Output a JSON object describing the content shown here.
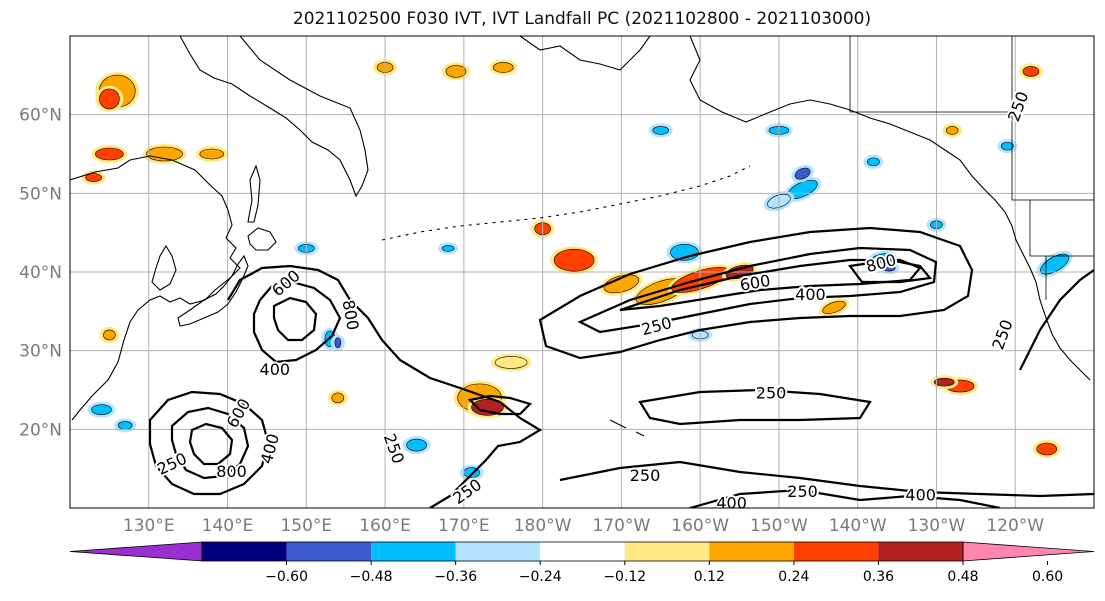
{
  "title": "2021102500 F030 IVT, IVT Landfall PC (2021102800 - 2021103000)",
  "map": {
    "lat_labels": [
      "60°N",
      "50°N",
      "40°N",
      "30°N",
      "20°N"
    ],
    "lon_labels": [
      "130°E",
      "140°E",
      "150°E",
      "160°E",
      "170°E",
      "180°W",
      "170°W",
      "160°W",
      "150°W",
      "140°W",
      "130°W",
      "120°W"
    ],
    "colors": {
      "coast": "#000000",
      "grid": "#b0b0b0",
      "contour": "#000000"
    }
  },
  "contours": {
    "levels": [
      250,
      400,
      600,
      800
    ],
    "labels": [
      {
        "text": "600",
        "lon": 147.5,
        "lat": 38.5,
        "rot": -40
      },
      {
        "text": "800",
        "lon": 155.5,
        "lat": 34.5,
        "rot": 80
      },
      {
        "text": "400",
        "lon": 146.0,
        "lat": 27.5,
        "rot": 0
      },
      {
        "text": "600",
        "lon": 141.5,
        "lat": 22.0,
        "rot": -60
      },
      {
        "text": "800",
        "lon": 140.5,
        "lat": 14.5,
        "rot": 0
      },
      {
        "text": "400",
        "lon": 145.5,
        "lat": 17.5,
        "rot": -75
      },
      {
        "text": "250",
        "lon": 133.0,
        "lat": 15.5,
        "rot": -25
      },
      {
        "text": "250",
        "lon": 161.0,
        "lat": 17.5,
        "rot": 70
      },
      {
        "text": "250",
        "lon": 170.5,
        "lat": 12.0,
        "rot": -35
      },
      {
        "text": "250",
        "lon": -165.5,
        "lat": 33.0,
        "rot": -15
      },
      {
        "text": "600",
        "lon": -153.0,
        "lat": 38.5,
        "rot": -10
      },
      {
        "text": "800",
        "lon": -137.0,
        "lat": 41.0,
        "rot": -15
      },
      {
        "text": "400",
        "lon": -146.0,
        "lat": 37.0,
        "rot": 0
      },
      {
        "text": "250",
        "lon": -151.0,
        "lat": 24.5,
        "rot": 0
      },
      {
        "text": "250",
        "lon": -167.0,
        "lat": 14.0,
        "rot": 0
      },
      {
        "text": "250",
        "lon": -147.0,
        "lat": 12.0,
        "rot": 0
      },
      {
        "text": "400",
        "lon": -156.0,
        "lat": 10.5,
        "rot": 0
      },
      {
        "text": "400",
        "lon": -132.0,
        "lat": 11.5,
        "rot": 0
      },
      {
        "text": "250",
        "lon": -121.5,
        "lat": 32.0,
        "rot": -70
      },
      {
        "text": "250",
        "lon": -119.5,
        "lat": 61.0,
        "rot": -70
      }
    ]
  },
  "colorbar": {
    "ticks": [
      "−0.60",
      "−0.48",
      "−0.36",
      "−0.24",
      "−0.12",
      "0.12",
      "0.24",
      "0.36",
      "0.48",
      "0.60"
    ],
    "colors": [
      "#9b30d0",
      "#000080",
      "#3a5bcc",
      "#00bfff",
      "#b3e3ff",
      "#ffffff",
      "#ffe985",
      "#ffa500",
      "#ff4000",
      "#b22222",
      "#ff86b0"
    ]
  }
}
